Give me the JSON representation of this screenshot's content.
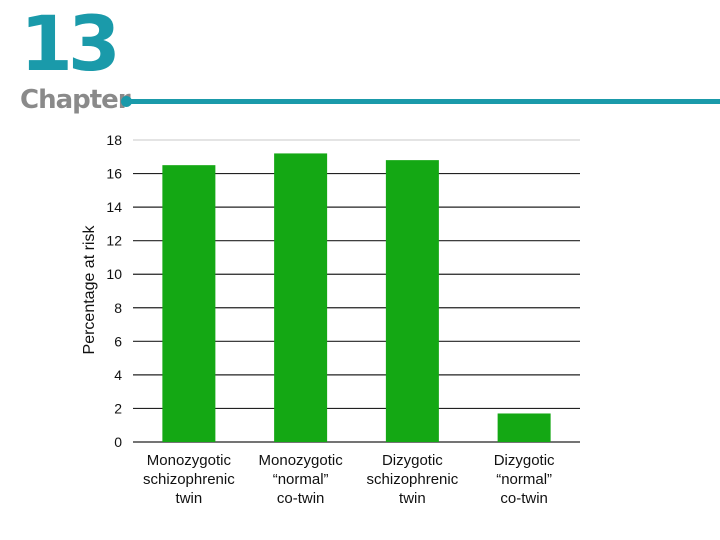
{
  "header": {
    "chapter_number": "13",
    "chapter_label": "Chapter"
  },
  "colors": {
    "accent": "#1a9aaa",
    "label_gray": "#8a8a8a",
    "bar": "#14a814",
    "grid_dark": "#222222",
    "grid_light": "#c8c8c8"
  },
  "chart_data": {
    "type": "bar",
    "title": "",
    "xlabel": "",
    "ylabel": "Percentage at risk",
    "ylim": [
      0,
      18
    ],
    "yticks": [
      0,
      2,
      4,
      6,
      8,
      10,
      12,
      14,
      16,
      18
    ],
    "grid": true,
    "categories": [
      [
        "Monozygotic",
        "schizophrenic",
        "twin"
      ],
      [
        "Monozygotic",
        "“normal”",
        "co-twin"
      ],
      [
        "Dizygotic",
        "schizophrenic",
        "twin"
      ],
      [
        "Dizygotic",
        "“normal”",
        "co-twin"
      ]
    ],
    "values": [
      16.5,
      17.2,
      16.8,
      1.7
    ]
  }
}
